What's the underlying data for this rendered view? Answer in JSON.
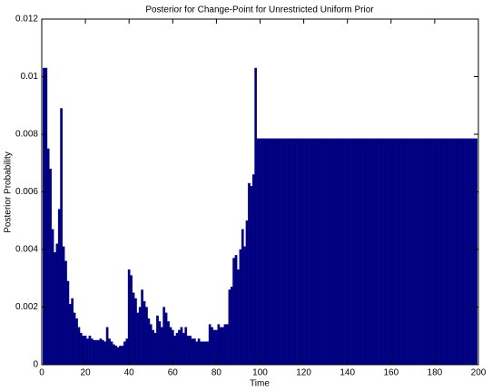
{
  "chart_data": {
    "type": "bar",
    "title": "Posterior for Change-Point for Unrestricted Uniform Prior",
    "x_label": "Time",
    "y_label": "Posterior Probability",
    "color": "#000080",
    "xlim": [
      0,
      200
    ],
    "xticks": [
      0,
      20,
      40,
      60,
      80,
      100,
      120,
      140,
      160,
      180,
      200
    ],
    "ylim": [
      0,
      0.012
    ],
    "yticks": [
      0,
      0.002,
      0.004,
      0.006,
      0.008,
      0.01,
      0.012
    ],
    "grid": false,
    "x": [
      1,
      2,
      3,
      4,
      5,
      6,
      7,
      8,
      9,
      10,
      11,
      12,
      13,
      14,
      15,
      16,
      17,
      18,
      19,
      20,
      21,
      22,
      23,
      24,
      25,
      26,
      27,
      28,
      29,
      30,
      31,
      32,
      33,
      34,
      35,
      36,
      37,
      38,
      39,
      40,
      41,
      42,
      43,
      44,
      45,
      46,
      47,
      48,
      49,
      50,
      51,
      52,
      53,
      54,
      55,
      56,
      57,
      58,
      59,
      60,
      61,
      62,
      63,
      64,
      65,
      66,
      67,
      68,
      69,
      70,
      71,
      72,
      73,
      74,
      75,
      76,
      77,
      78,
      79,
      80,
      81,
      82,
      83,
      84,
      85,
      86,
      87,
      88,
      89,
      90,
      91,
      92,
      93,
      94,
      95,
      96,
      97,
      98,
      99,
      100,
      101,
      102,
      103,
      104,
      105,
      106,
      107,
      108,
      109,
      110,
      111,
      112,
      113,
      114,
      115,
      116,
      117,
      118,
      119,
      120,
      121,
      122,
      123,
      124,
      125,
      126,
      127,
      128,
      129,
      130,
      131,
      132,
      133,
      134,
      135,
      136,
      137,
      138,
      139,
      140,
      141,
      142,
      143,
      144,
      145,
      146,
      147,
      148,
      149,
      150,
      151,
      152,
      153,
      154,
      155,
      156,
      157,
      158,
      159,
      160,
      161,
      162,
      163,
      164,
      165,
      166,
      167,
      168,
      169,
      170,
      171,
      172,
      173,
      174,
      175,
      176,
      177,
      178,
      179,
      180,
      181,
      182,
      183,
      184,
      185,
      186,
      187,
      188,
      189,
      190,
      191,
      192,
      193,
      194,
      195,
      196,
      197,
      198,
      199
    ],
    "values": [
      0.0103,
      0.0103,
      0.0075,
      0.0068,
      0.0047,
      0.0039,
      0.0042,
      0.0054,
      0.0089,
      0.0041,
      0.0036,
      0.0029,
      0.0021,
      0.0023,
      0.0018,
      0.0016,
      0.0013,
      0.0011,
      0.001,
      0.001,
      0.0009,
      0.001,
      0.0009,
      0.00085,
      0.00085,
      0.00085,
      0.0009,
      0.00085,
      0.0008,
      0.0013,
      0.0009,
      0.0008,
      0.0007,
      0.00065,
      0.0006,
      0.00065,
      0.00065,
      0.0008,
      0.0009,
      0.0033,
      0.0031,
      0.0025,
      0.0023,
      0.0018,
      0.002,
      0.0026,
      0.0022,
      0.002,
      0.0016,
      0.0014,
      0.0012,
      0.0011,
      0.0017,
      0.0015,
      0.0013,
      0.002,
      0.0018,
      0.0015,
      0.0013,
      0.0012,
      0.001,
      0.0011,
      0.0012,
      0.0013,
      0.0011,
      0.0013,
      0.001,
      0.001,
      0.0009,
      0.0009,
      0.0008,
      0.0009,
      0.0008,
      0.0008,
      0.0008,
      0.0008,
      0.0014,
      0.0013,
      0.0012,
      0.0012,
      0.0014,
      0.0013,
      0.0013,
      0.0014,
      0.0014,
      0.0026,
      0.0027,
      0.0037,
      0.0038,
      0.0033,
      0.004,
      0.0047,
      0.0041,
      0.005,
      0.0063,
      0.0062,
      0.0066,
      0.0103,
      0.00785,
      0.00785,
      0.00785,
      0.00785,
      0.00785,
      0.00785,
      0.00785,
      0.00785,
      0.00785,
      0.00785,
      0.00785,
      0.00785,
      0.00785,
      0.00785,
      0.00785,
      0.00785,
      0.00785,
      0.00785,
      0.00785,
      0.00785,
      0.00785,
      0.00785,
      0.00785,
      0.00785,
      0.00785,
      0.00785,
      0.00785,
      0.00785,
      0.00785,
      0.00785,
      0.00785,
      0.00785,
      0.00785,
      0.00785,
      0.00785,
      0.00785,
      0.00785,
      0.00785,
      0.00785,
      0.00785,
      0.00785,
      0.00785,
      0.00785,
      0.00785,
      0.00785,
      0.00785,
      0.00785,
      0.00785,
      0.00785,
      0.00785,
      0.00785,
      0.00785,
      0.00785,
      0.00785,
      0.00785,
      0.00785,
      0.00785,
      0.00785,
      0.00785,
      0.00785,
      0.00785,
      0.00785,
      0.00785,
      0.00785,
      0.00785,
      0.00785,
      0.00785,
      0.00785,
      0.00785,
      0.00785,
      0.00785,
      0.00785,
      0.00785,
      0.00785,
      0.00785,
      0.00785,
      0.00785,
      0.00785,
      0.00785,
      0.00785,
      0.00785,
      0.00785,
      0.00785,
      0.00785,
      0.00785,
      0.00785,
      0.00785,
      0.00785,
      0.00785,
      0.00785,
      0.00785,
      0.00785,
      0.00785,
      0.00785,
      0.00785,
      0.00785,
      0.00785,
      0.00785,
      0.00785,
      0.00785,
      0.00785
    ]
  }
}
